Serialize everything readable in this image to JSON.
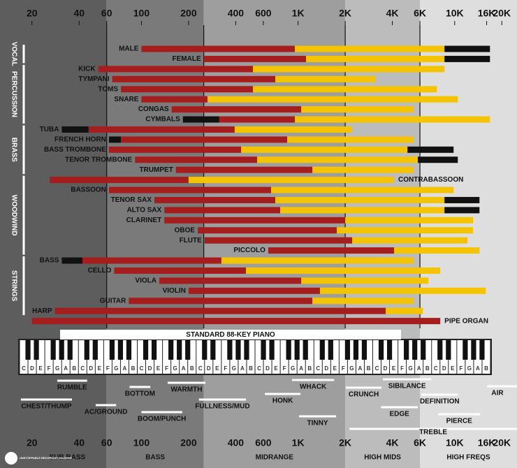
{
  "chart_data": {
    "type": "range-bar",
    "log_scale": true,
    "xlim": [
      12.5,
      25000
    ],
    "xticks": [
      20,
      40,
      60,
      100,
      200,
      400,
      600,
      {
        "value": 1000,
        "label": "1K"
      },
      {
        "value": 2000,
        "label": "2K"
      },
      {
        "value": 4000,
        "label": "4K"
      },
      {
        "value": 6000,
        "label": "6K"
      },
      {
        "value": 10000,
        "label": "10K"
      },
      {
        "value": 16000,
        "label": "16K"
      },
      {
        "value": 20000,
        "label": "20K"
      }
    ],
    "bands": [
      {
        "label": "SUB BASS",
        "from": 12.5,
        "to": 60,
        "color": "#5d5d5d"
      },
      {
        "label": "BASS",
        "from": 60,
        "to": 250,
        "color": "#7a7a7a"
      },
      {
        "label": "MIDRANGE",
        "from": 250,
        "to": 2000,
        "color": "#9e9e9e"
      },
      {
        "label": "HIGH MIDS",
        "from": 2000,
        "to": 6000,
        "color": "#bcbcbc"
      },
      {
        "label": "HIGH FREQS",
        "from": 6000,
        "to": 25000,
        "color": "#dedede"
      }
    ],
    "groups": [
      {
        "label": "VOCAL",
        "bars": [
          {
            "label": "MALE",
            "segments": [
              {
                "from": 100,
                "to": 955,
                "color": "#a51d1d"
              },
              {
                "from": 955,
                "to": 8610,
                "color": "#f5c400"
              },
              {
                "from": 8610,
                "to": 16800,
                "color": "#111111"
              }
            ]
          },
          {
            "label": "FEMALE",
            "segments": [
              {
                "from": 250,
                "to": 1124,
                "color": "#a51d1d"
              },
              {
                "from": 1124,
                "to": 8610,
                "color": "#f5c400"
              },
              {
                "from": 8610,
                "to": 16800,
                "color": "#111111"
              }
            ]
          }
        ]
      },
      {
        "label": "PERCUSSION",
        "bars": [
          {
            "label": "KICK",
            "segments": [
              {
                "from": 53,
                "to": 515,
                "color": "#a51d1d"
              },
              {
                "from": 515,
                "to": 8610,
                "color": "#f5c400"
              }
            ]
          },
          {
            "label": "TYMPANI",
            "segments": [
              {
                "from": 65,
                "to": 716,
                "color": "#a51d1d"
              },
              {
                "from": 716,
                "to": 3112,
                "color": "#f5c400"
              }
            ]
          },
          {
            "label": "TOMS",
            "segments": [
              {
                "from": 74,
                "to": 515,
                "color": "#a51d1d"
              },
              {
                "from": 515,
                "to": 7690,
                "color": "#f5c400"
              }
            ]
          },
          {
            "label": "SNARE",
            "segments": [
              {
                "from": 100,
                "to": 264,
                "color": "#a51d1d"
              },
              {
                "from": 264,
                "to": 10470,
                "color": "#f5c400"
              }
            ]
          },
          {
            "label": "CONGAS",
            "segments": [
              {
                "from": 156,
                "to": 1047,
                "color": "#a51d1d"
              },
              {
                "from": 1047,
                "to": 5476,
                "color": "#f5c400"
              }
            ]
          },
          {
            "label": "CYMBALS",
            "segments": [
              {
                "from": 184,
                "to": 314,
                "color": "#111111"
              },
              {
                "from": 314,
                "to": 955,
                "color": "#a51d1d"
              },
              {
                "from": 955,
                "to": 16800,
                "color": "#f5c400"
              }
            ]
          }
        ]
      },
      {
        "label": "BRASS",
        "bars": [
          {
            "label": "TUBA",
            "segments": [
              {
                "from": 31,
                "to": 46,
                "color": "#111111"
              },
              {
                "from": 46,
                "to": 394,
                "color": "#a51d1d"
              },
              {
                "from": 394,
                "to": 2218,
                "color": "#f5c400"
              }
            ]
          },
          {
            "label": "FRENCH HORN",
            "segments": [
              {
                "from": 62,
                "to": 74,
                "color": "#111111"
              },
              {
                "from": 74,
                "to": 852,
                "color": "#a51d1d"
              },
              {
                "from": 852,
                "to": 5476,
                "color": "#f5c400"
              }
            ]
          },
          {
            "label": "BASS TROMBONE",
            "segments": [
              {
                "from": 62,
                "to": 433,
                "color": "#a51d1d"
              },
              {
                "from": 433,
                "to": 4992,
                "color": "#f5c400"
              },
              {
                "from": 4992,
                "to": 9840,
                "color": "#111111"
              }
            ]
          },
          {
            "label": "TENOR TROMBONE",
            "segments": [
              {
                "from": 91,
                "to": 548,
                "color": "#a51d1d"
              },
              {
                "from": 548,
                "to": 5820,
                "color": "#f5c400"
              },
              {
                "from": 5820,
                "to": 10470,
                "color": "#111111"
              }
            ]
          },
          {
            "label": "TRUMPET",
            "segments": [
              {
                "from": 166,
                "to": 1234,
                "color": "#a51d1d"
              },
              {
                "from": 1234,
                "to": 5476,
                "color": "#f5c400"
              }
            ]
          }
        ]
      },
      {
        "label": "WOODWIND",
        "bars": [
          {
            "label": "CONTRABASSOON",
            "segments": [
              {
                "from": 26,
                "to": 200,
                "color": "#a51d1d"
              },
              {
                "from": 200,
                "to": 4100,
                "color": "#f5c400"
              }
            ]
          },
          {
            "label": "BASSOON",
            "segments": [
              {
                "from": 62,
                "to": 673,
                "color": "#a51d1d"
              },
              {
                "from": 673,
                "to": 9840,
                "color": "#f5c400"
              }
            ]
          },
          {
            "label": "TENOR SAX",
            "segments": [
              {
                "from": 121,
                "to": 716,
                "color": "#a51d1d"
              },
              {
                "from": 716,
                "to": 8610,
                "color": "#f5c400"
              },
              {
                "from": 8610,
                "to": 14400,
                "color": "#111111"
              }
            ]
          },
          {
            "label": "ALTO SAX",
            "segments": [
              {
                "from": 140,
                "to": 769,
                "color": "#a51d1d"
              },
              {
                "from": 769,
                "to": 8610,
                "color": "#f5c400"
              },
              {
                "from": 8610,
                "to": 14400,
                "color": "#111111"
              }
            ]
          },
          {
            "label": "CLARINET",
            "segments": [
              {
                "from": 140,
                "to": 2000,
                "color": "#a51d1d"
              },
              {
                "from": 2000,
                "to": 13100,
                "color": "#f5c400"
              }
            ]
          },
          {
            "label": "OBOE",
            "segments": [
              {
                "from": 229,
                "to": 1767,
                "color": "#a51d1d"
              },
              {
                "from": 1767,
                "to": 13100,
                "color": "#f5c400"
              }
            ]
          },
          {
            "label": "FLUTE",
            "segments": [
              {
                "from": 253,
                "to": 2218,
                "color": "#a51d1d"
              },
              {
                "from": 2218,
                "to": 12060,
                "color": "#f5c400"
              }
            ]
          },
          {
            "label": "PICCOLO",
            "segments": [
              {
                "from": 645,
                "to": 4108,
                "color": "#a51d1d"
              },
              {
                "from": 4108,
                "to": 14400,
                "color": "#f5c400"
              }
            ]
          }
        ]
      },
      {
        "label": "STRINGS",
        "bars": [
          {
            "label": "BASS",
            "segments": [
              {
                "from": 31,
                "to": 42,
                "color": "#111111"
              },
              {
                "from": 42,
                "to": 324,
                "color": "#a51d1d"
              },
              {
                "from": 324,
                "to": 5476,
                "color": "#f5c400"
              }
            ]
          },
          {
            "label": "CELLO",
            "segments": [
              {
                "from": 67,
                "to": 465,
                "color": "#a51d1d"
              },
              {
                "from": 465,
                "to": 8092,
                "color": "#f5c400"
              }
            ]
          },
          {
            "label": "VIOLA",
            "segments": [
              {
                "from": 130,
                "to": 1047,
                "color": "#a51d1d"
              },
              {
                "from": 1047,
                "to": 6794,
                "color": "#f5c400"
              }
            ]
          },
          {
            "label": "VIOLIN",
            "segments": [
              {
                "from": 200,
                "to": 1380,
                "color": "#a51d1d"
              },
              {
                "from": 1380,
                "to": 15780,
                "color": "#f5c400"
              }
            ]
          },
          {
            "label": "GUITAR",
            "segments": [
              {
                "from": 83,
                "to": 1234,
                "color": "#a51d1d"
              },
              {
                "from": 1234,
                "to": 5476,
                "color": "#f5c400"
              }
            ]
          },
          {
            "label": "HARP",
            "segments": [
              {
                "from": 28,
                "to": 3630,
                "color": "#a51d1d"
              },
              {
                "from": 3630,
                "to": 6264,
                "color": "#f5c400"
              }
            ]
          }
        ]
      },
      {
        "bars": [
          {
            "label": "PIPE ORGAN",
            "segments": [
              {
                "from": 20,
                "to": 8092,
                "color": "#a51d1d"
              }
            ]
          }
        ]
      }
    ],
    "piano": {
      "title": "STANDARD 88-KEY PIANO",
      "keys": [
        "C",
        "D",
        "E",
        "F",
        "G",
        "A",
        "B",
        "C",
        "D",
        "E",
        "F",
        "G",
        "A",
        "B",
        "C",
        "D",
        "E",
        "F",
        "G",
        "A",
        "B",
        "C",
        "D",
        "E",
        "F",
        "G",
        "A",
        "B",
        "C",
        "D",
        "E",
        "F",
        "G",
        "A",
        "B",
        "C",
        "D",
        "E",
        "F",
        "G",
        "A",
        "B",
        "C",
        "D",
        "E",
        "F",
        "G",
        "A",
        "B",
        "C",
        "D",
        "E",
        "F",
        "G",
        "A",
        "B"
      ]
    },
    "descriptors": [
      {
        "label": "RUMBLE",
        "from": 29,
        "to": 45
      },
      {
        "label": "CHEST/THUMP",
        "from": 17,
        "to": 36
      },
      {
        "label": "AC/GROUND",
        "from": 51,
        "to": 69
      },
      {
        "label": "BOTTOM",
        "from": 84,
        "to": 114
      },
      {
        "label": "WARMTH",
        "from": 147,
        "to": 256
      },
      {
        "label": "BOOM/PUNCH",
        "from": 100,
        "to": 182
      },
      {
        "label": "FULLNESS/MUD",
        "from": 233,
        "to": 465
      },
      {
        "label": "HONK",
        "from": 614,
        "to": 1036
      },
      {
        "label": "WHACK",
        "from": 916,
        "to": 1698
      },
      {
        "label": "TINNY",
        "from": 1014,
        "to": 1750
      },
      {
        "label": "CRUNCH",
        "from": 2018,
        "to": 3414
      },
      {
        "label": "SIBILANCE",
        "from": 3483,
        "to": 7080
      },
      {
        "label": "DEFINITION",
        "from": 6140,
        "to": 10470
      },
      {
        "label": "EDGE",
        "from": 3380,
        "to": 5820
      },
      {
        "label": "PIERCE",
        "from": 7850,
        "to": 14540
      },
      {
        "label": "AIR",
        "from": 16100,
        "to": 25000
      },
      {
        "label": "TREBLE",
        "from": 2128,
        "to": 25000
      }
    ],
    "logo": "UNSTOPPABLE RECORDING MACHINE"
  }
}
